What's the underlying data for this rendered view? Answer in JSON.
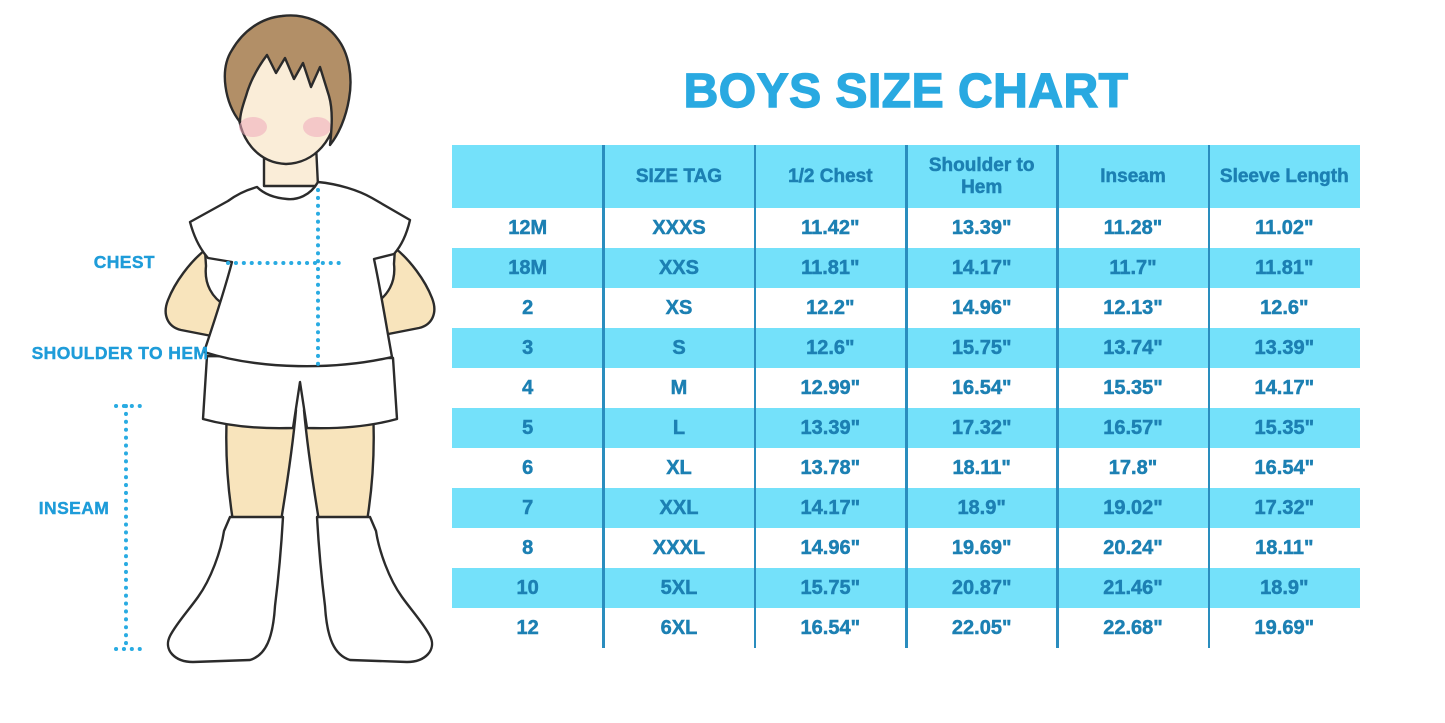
{
  "title": "BOYS SIZE CHART",
  "figure": {
    "labels": {
      "chest": "CHEST",
      "shoulder_to_hem": "SHOULDER TO HEM",
      "inseam": "INSEAM"
    }
  },
  "chart_data": {
    "type": "table",
    "title": "BOYS SIZE CHART",
    "columns": [
      "",
      "SIZE TAG",
      "1/2 Chest",
      "Shoulder to Hem",
      "Inseam",
      "Sleeve Length"
    ],
    "rows": [
      [
        "12M",
        "XXXS",
        "11.42\"",
        "13.39\"",
        "11.28\"",
        "11.02\""
      ],
      [
        "18M",
        "XXS",
        "11.81\"",
        "14.17\"",
        "11.7\"",
        "11.81\""
      ],
      [
        "2",
        "XS",
        "12.2\"",
        "14.96\"",
        "12.13\"",
        "12.6\""
      ],
      [
        "3",
        "S",
        "12.6\"",
        "15.75\"",
        "13.74\"",
        "13.39\""
      ],
      [
        "4",
        "M",
        "12.99\"",
        "16.54\"",
        "15.35\"",
        "14.17\""
      ],
      [
        "5",
        "L",
        "13.39\"",
        "17.32\"",
        "16.57\"",
        "15.35\""
      ],
      [
        "6",
        "XL",
        "13.78\"",
        "18.11\"",
        "17.8\"",
        "16.54\""
      ],
      [
        "7",
        "XXL",
        "14.17\"",
        "18.9\"",
        "19.02\"",
        "17.32\""
      ],
      [
        "8",
        "XXXL",
        "14.96\"",
        "19.69\"",
        "20.24\"",
        "18.11\""
      ],
      [
        "10",
        "5XL",
        "15.75\"",
        "20.87\"",
        "21.46\"",
        "18.9\""
      ],
      [
        "12",
        "6XL",
        "16.54\"",
        "22.05\"",
        "22.68\"",
        "19.69\""
      ]
    ],
    "layout": {
      "header_background": "banded",
      "row_striping": [
        "white",
        "blue"
      ],
      "grid": "vertical-dividers-only"
    }
  },
  "colors": {
    "title_blue": "#29A9E1",
    "label_blue": "#1E9CD9",
    "band_blue": "#74E1FA",
    "divider_blue": "#2A8DBE",
    "cell_text_blue": "#1C80B3",
    "dotted_cyan": "#29ABE2",
    "skin": "#F8E4BC",
    "face_skin": "#FAEDD8",
    "hair_brown": "#B28F67",
    "blush_pink": "#EFA9BC",
    "outline_dark": "#2B2B2B",
    "garment_white": "#FFFFFF"
  }
}
